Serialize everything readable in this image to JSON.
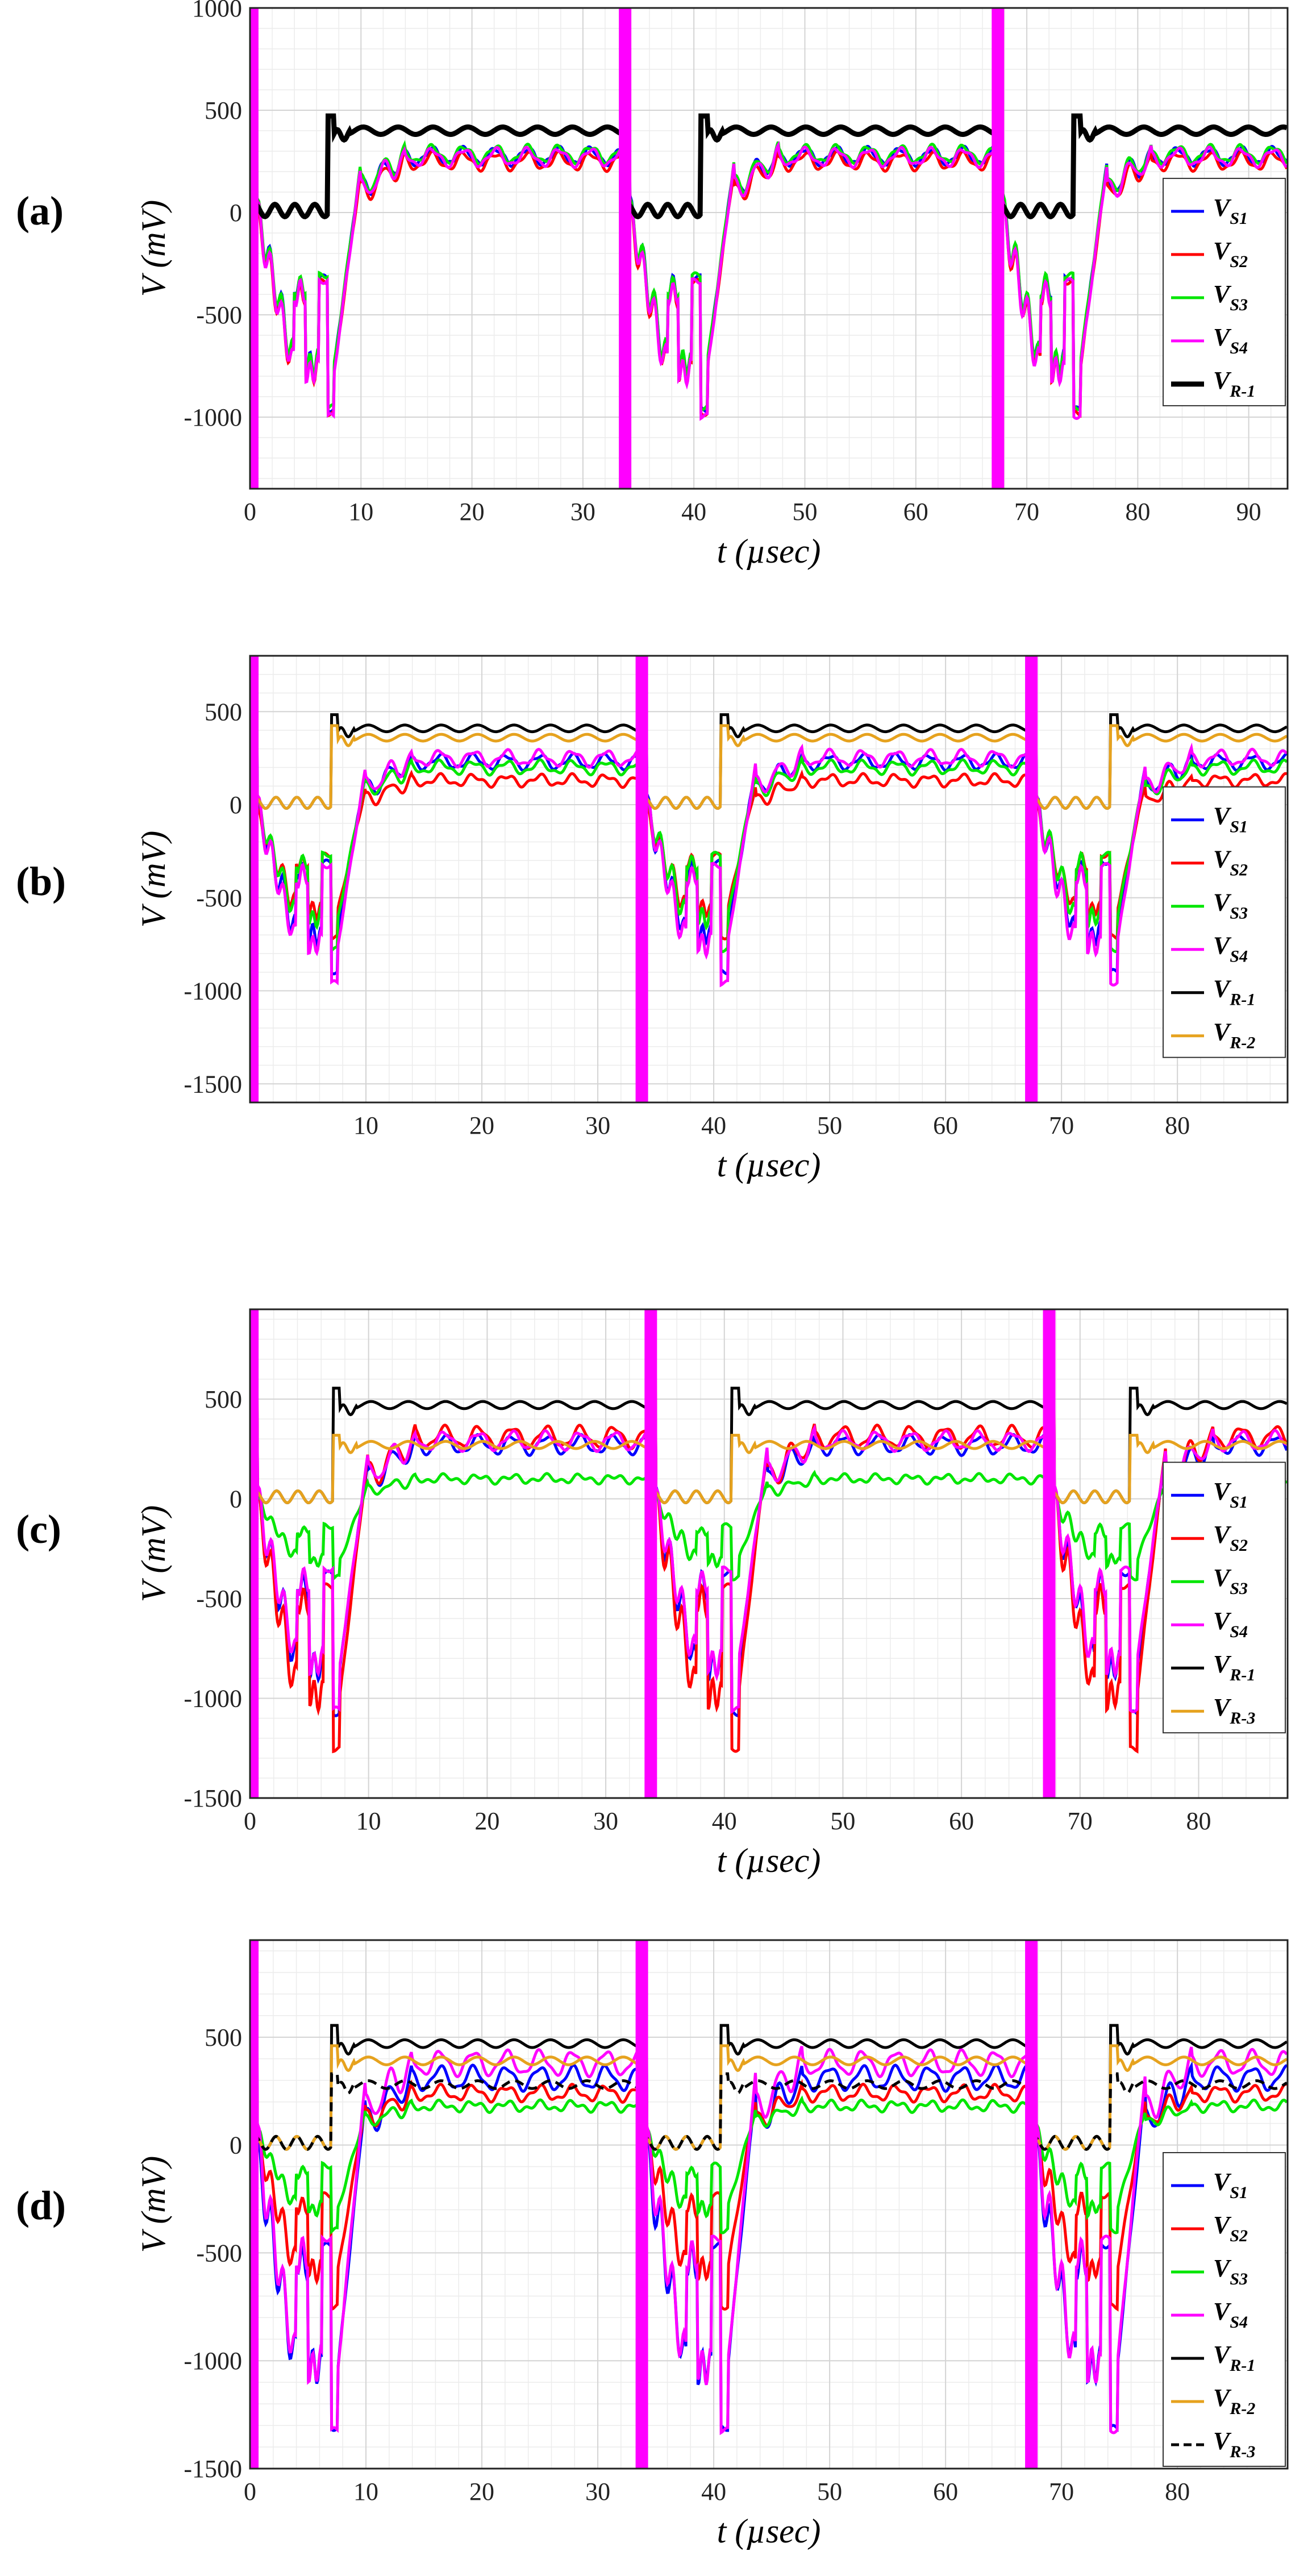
{
  "colors": {
    "V_S1": "#0000ff",
    "V_S2": "#ff0000",
    "V_S3": "#00e600",
    "V_S4": "#ff00ff",
    "V_R-1": "#000000",
    "V_R-2": "#e6a21e",
    "V_R-3": "#000000"
  },
  "chart_data": [
    {
      "type": "line",
      "panel_label": "(a)",
      "xlabel": "t (µsec)",
      "ylabel": "V (mV)",
      "xlim": [
        0,
        93.5
      ],
      "ylim": [
        -1350,
        1000
      ],
      "xticks": [
        0,
        10,
        20,
        30,
        40,
        50,
        60,
        70,
        80,
        90
      ],
      "yticks": [
        -1000,
        -500,
        0,
        500,
        1000
      ],
      "grid": true,
      "legend": "right-center",
      "period": 33.6,
      "series": [
        {
          "name": "V_S1",
          "sub": "S1",
          "plateau": 275,
          "dip": -800
        },
        {
          "name": "V_S2",
          "sub": "S2",
          "plateau": 250,
          "dip": -820
        },
        {
          "name": "V_S3",
          "sub": "S3",
          "plateau": 285,
          "dip": -790
        },
        {
          "name": "V_S4",
          "sub": "S4",
          "plateau": 270,
          "dip": -830
        },
        {
          "name": "V_R-1",
          "sub": "R-1",
          "plateau": 400,
          "dip": 0,
          "bold": true
        }
      ]
    },
    {
      "type": "line",
      "panel_label": "(b)",
      "xlabel": "t (µsec)",
      "ylabel": "V (mV)",
      "xlim": [
        0,
        89.5
      ],
      "ylim": [
        -1600,
        800
      ],
      "xticks": [
        10,
        20,
        30,
        40,
        50,
        60,
        70,
        80
      ],
      "yticks": [
        -1500,
        -1000,
        -500,
        0,
        500
      ],
      "grid": true,
      "legend": "right-center",
      "period": 33.6,
      "series": [
        {
          "name": "V_S1",
          "sub": "S1",
          "plateau": 230,
          "dip": -750
        },
        {
          "name": "V_S2",
          "sub": "S2",
          "plateau": 130,
          "dip": -600
        },
        {
          "name": "V_S3",
          "sub": "S3",
          "plateau": 200,
          "dip": -650
        },
        {
          "name": "V_S4",
          "sub": "S4",
          "plateau": 250,
          "dip": -800
        },
        {
          "name": "V_R-1",
          "sub": "R-1",
          "plateau": 410,
          "dip": 0
        },
        {
          "name": "V_R-2",
          "sub": "R-2",
          "plateau": 360,
          "dip": 0
        }
      ]
    },
    {
      "type": "line",
      "panel_label": "(c)",
      "xlabel": "t (µsec)",
      "ylabel": "V (mV)",
      "xlim": [
        0,
        87.5
      ],
      "ylim": [
        -1500,
        950
      ],
      "xticks": [
        0,
        10,
        20,
        30,
        40,
        50,
        60,
        70,
        80
      ],
      "yticks": [
        -1500,
        -1000,
        -500,
        0,
        500
      ],
      "grid": true,
      "legend": "right-center",
      "period": 33.6,
      "series": [
        {
          "name": "V_S1",
          "sub": "S1",
          "plateau": 270,
          "dip": -900
        },
        {
          "name": "V_S2",
          "sub": "S2",
          "plateau": 310,
          "dip": -1050
        },
        {
          "name": "V_S3",
          "sub": "S3",
          "plateau": 100,
          "dip": -330
        },
        {
          "name": "V_S4",
          "sub": "S4",
          "plateau": 290,
          "dip": -880
        },
        {
          "name": "V_R-1",
          "sub": "R-1",
          "plateau": 470,
          "dip": 0
        },
        {
          "name": "V_R-3",
          "sub": "R-3",
          "plateau": 270,
          "dip": 0,
          "color_key": "V_R-2"
        }
      ]
    },
    {
      "type": "line",
      "panel_label": "(d)",
      "xlabel": "t (µsec)",
      "ylabel": "V (mV)",
      "xlim": [
        0,
        89.5
      ],
      "ylim": [
        -1500,
        950
      ],
      "xticks": [
        0,
        10,
        20,
        30,
        40,
        50,
        60,
        70,
        80
      ],
      "yticks": [
        -1500,
        -1000,
        -500,
        0,
        500
      ],
      "grid": true,
      "legend": "right-bottom",
      "period": 33.6,
      "series": [
        {
          "name": "V_S1",
          "sub": "S1",
          "plateau": 310,
          "dip": -1100
        },
        {
          "name": "V_S2",
          "sub": "S2",
          "plateau": 240,
          "dip": -620
        },
        {
          "name": "V_S3",
          "sub": "S3",
          "plateau": 180,
          "dip": -320
        },
        {
          "name": "V_S4",
          "sub": "S4",
          "plateau": 380,
          "dip": -1100
        },
        {
          "name": "V_R-1",
          "sub": "R-1",
          "plateau": 470,
          "dip": 0
        },
        {
          "name": "V_R-2",
          "sub": "R-2",
          "plateau": 390,
          "dip": 0
        },
        {
          "name": "V_R-3",
          "sub": "R-3",
          "plateau": 280,
          "dip": 0,
          "dashed": true
        }
      ]
    }
  ]
}
